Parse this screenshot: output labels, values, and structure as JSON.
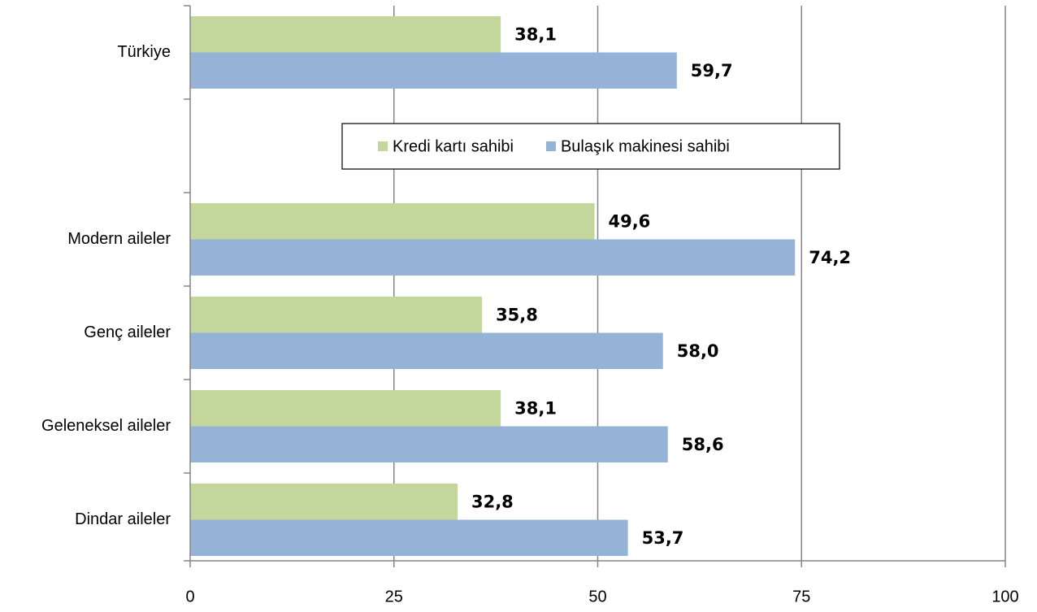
{
  "chart_data": {
    "type": "bar",
    "orientation": "horizontal",
    "categories": [
      "Türkiye",
      null,
      "Modern aileler",
      "Genç aileler",
      "Geleneksel aileler",
      "Dindar aileler"
    ],
    "series": [
      {
        "name": "Kredi kartı sahibi",
        "color": "#c3d69b",
        "values": [
          38.1,
          null,
          49.6,
          35.8,
          38.1,
          32.8
        ],
        "value_labels": [
          "38,1",
          null,
          "49,6",
          "35,8",
          "38,1",
          "32,8"
        ]
      },
      {
        "name": "Bulaşık makinesi sahibi",
        "color": "#95b3d7",
        "values": [
          59.7,
          null,
          74.2,
          58.0,
          58.6,
          53.7
        ],
        "value_labels": [
          "59,7",
          null,
          "74,2",
          "58,0",
          "58,6",
          "53,7"
        ]
      }
    ],
    "xlim": [
      0,
      100
    ],
    "xticks": [
      0,
      25,
      50,
      75,
      100
    ],
    "grid": true
  }
}
